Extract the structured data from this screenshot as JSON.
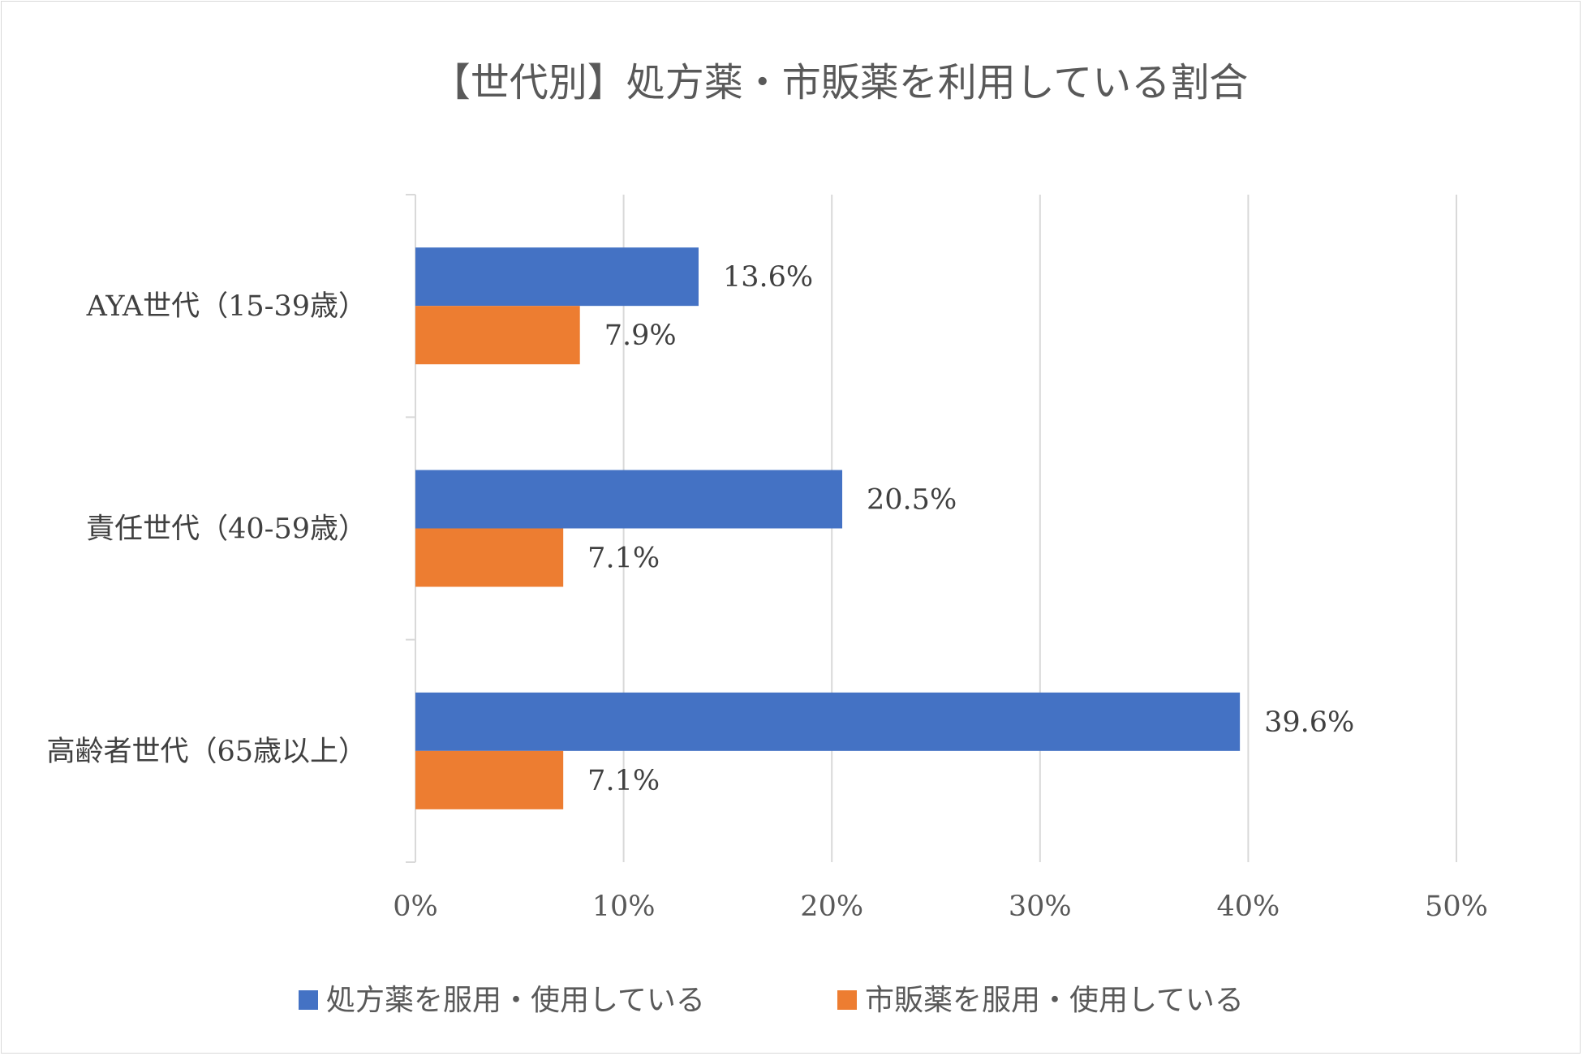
{
  "chart_data": {
    "type": "bar",
    "orientation": "horizontal",
    "title": "【世代別】処方薬・市販薬を利用している割合",
    "categories": [
      "AYA世代（15-39歳）",
      "責任世代（40-59歳）",
      "高齢者世代（65歳以上）"
    ],
    "series": [
      {
        "name": "処方薬を服用・使用している",
        "color": "#4472C4",
        "values": [
          13.6,
          20.5,
          39.6
        ],
        "labels": [
          "13.6%",
          "20.5%",
          "39.6%"
        ]
      },
      {
        "name": "市販薬を服用・使用している",
        "color": "#ED7D31",
        "values": [
          7.9,
          7.1,
          7.1
        ],
        "labels": [
          "7.9%",
          "7.1%",
          "7.1%"
        ]
      }
    ],
    "xlim": [
      0,
      50
    ],
    "x_ticks": [
      0,
      10,
      20,
      30,
      40,
      50
    ],
    "x_tick_labels": [
      "0%",
      "10%",
      "20%",
      "30%",
      "40%",
      "50%"
    ],
    "xlabel": "",
    "ylabel": "",
    "grid": true,
    "legend_position": "bottom"
  }
}
